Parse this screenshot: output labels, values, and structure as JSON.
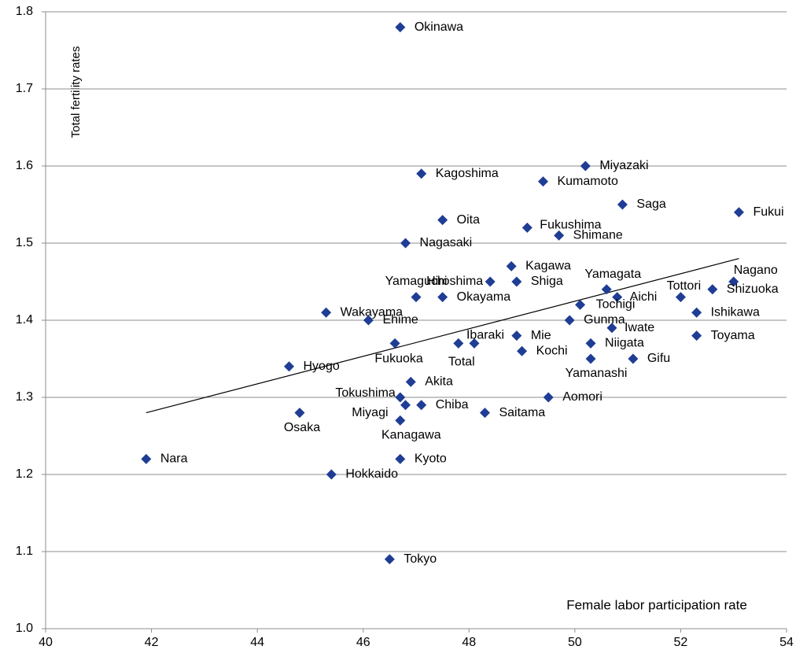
{
  "chart_data": {
    "type": "scatter",
    "y_label": "Total fertility rates",
    "x_label": "Female labor participation rate",
    "point_labels": [
      "Okinawa",
      "Kagoshima",
      "Miyazaki",
      "Kumamoto",
      "Saga",
      "Fukui",
      "Oita",
      "Fukushima",
      "Shimane",
      "Nagasaki",
      "Kagawa",
      "Hiroshima",
      "Shiga",
      "Yamaguchi",
      "Okayama",
      "Yamagata",
      "Aichi",
      "Tochigi",
      "Tottori",
      "Nagano",
      "Shizuoka",
      "Ishikawa",
      "Wakayama",
      "Ehime",
      "Gunma",
      "Iwate",
      "Toyama",
      "Ibaraki",
      "Total",
      "Mie",
      "Fukuoka",
      "Niigata",
      "Kochi",
      "Yamanashi",
      "Gifu",
      "Hyogo",
      "Akita",
      "Tokushima",
      "Aomori",
      "Miyagi",
      "Chiba",
      "Osaka",
      "Saitama",
      "Kanagawa",
      "Nara",
      "Kyoto",
      "Hokkaido",
      "Tokyo"
    ],
    "x": [
      46.7,
      47.1,
      50.2,
      49.4,
      50.9,
      53.1,
      47.5,
      49.1,
      49.7,
      46.8,
      48.8,
      48.4,
      48.9,
      47.0,
      47.5,
      50.6,
      50.8,
      50.1,
      52.0,
      53.0,
      52.6,
      52.3,
      45.3,
      46.1,
      49.9,
      50.7,
      52.3,
      48.1,
      47.8,
      48.9,
      46.6,
      50.3,
      49.0,
      50.3,
      51.1,
      44.6,
      46.9,
      46.7,
      49.5,
      46.8,
      47.1,
      44.8,
      48.3,
      46.7,
      41.9,
      46.7,
      45.4,
      46.5
    ],
    "values": [
      1.78,
      1.59,
      1.6,
      1.58,
      1.55,
      1.54,
      1.53,
      1.52,
      1.51,
      1.5,
      1.47,
      1.45,
      1.45,
      1.43,
      1.43,
      1.44,
      1.43,
      1.42,
      1.43,
      1.45,
      1.44,
      1.41,
      1.41,
      1.4,
      1.4,
      1.39,
      1.38,
      1.37,
      1.37,
      1.38,
      1.37,
      1.37,
      1.36,
      1.35,
      1.35,
      1.34,
      1.32,
      1.3,
      1.3,
      1.29,
      1.29,
      1.28,
      1.28,
      1.27,
      1.22,
      1.22,
      1.2,
      1.09
    ],
    "color": "#1f3d94",
    "trendline": {
      "x": [
        41.9,
        53.1
      ],
      "y": [
        1.28,
        1.48
      ],
      "color": "#000000"
    },
    "xlim": [
      40,
      54
    ],
    "xticks": [
      40,
      42,
      44,
      46,
      48,
      50,
      52,
      54
    ],
    "ylim": [
      1.0,
      1.8
    ],
    "yticks": [
      {
        "value": 1.0,
        "label": "1.0"
      },
      1.1,
      1.2,
      1.3,
      1.4,
      1.5,
      1.6,
      1.7,
      1.8
    ],
    "grid": true
  }
}
